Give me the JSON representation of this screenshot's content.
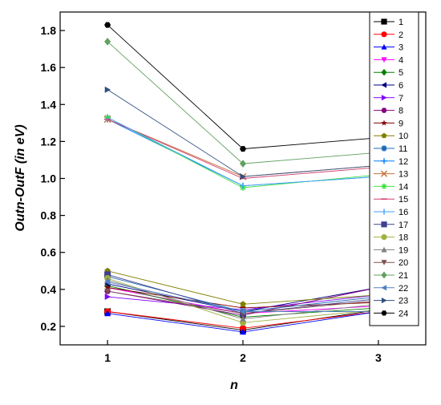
{
  "chart_data": {
    "type": "line",
    "xlabel": "n",
    "ylabel": "Outn-OutF (in eV)",
    "x": [
      1,
      2,
      3
    ],
    "x_ticks": [
      "1",
      "2",
      "3"
    ],
    "y_ticks": [
      "0.2",
      "0.4",
      "0.6",
      "0.8",
      "1.0",
      "1.2",
      "1.4",
      "1.6",
      "1.8"
    ],
    "xlim": [
      0.65,
      3.35
    ],
    "ylim": [
      0.1,
      1.9
    ],
    "grid": false,
    "legend_placement": "right",
    "series": [
      {
        "name": "1",
        "values": [
          0.28,
          0.18,
          0.29
        ],
        "color": "#000000",
        "marker": "square"
      },
      {
        "name": "2",
        "values": [
          0.28,
          0.19,
          0.28
        ],
        "color": "#ff0000",
        "marker": "circle"
      },
      {
        "name": "3",
        "values": [
          0.27,
          0.17,
          0.28
        ],
        "color": "#0000ff",
        "marker": "triangle-up"
      },
      {
        "name": "4",
        "values": [
          0.41,
          0.27,
          0.31
        ],
        "color": "#ff00ff",
        "marker": "triangle-down"
      },
      {
        "name": "5",
        "values": [
          0.42,
          0.25,
          0.3
        ],
        "color": "#008000",
        "marker": "diamond"
      },
      {
        "name": "6",
        "values": [
          0.43,
          0.28,
          0.41
        ],
        "color": "#000080",
        "marker": "triangle-left"
      },
      {
        "name": "7",
        "values": [
          0.36,
          0.29,
          0.37
        ],
        "color": "#8000ff",
        "marker": "triangle-right"
      },
      {
        "name": "8",
        "values": [
          0.39,
          0.26,
          0.41
        ],
        "color": "#800080",
        "marker": "hexagon"
      },
      {
        "name": "9",
        "values": [
          0.41,
          0.3,
          0.33
        ],
        "color": "#800000",
        "marker": "star"
      },
      {
        "name": "10",
        "values": [
          0.5,
          0.32,
          0.37
        ],
        "color": "#808000",
        "marker": "pentagon"
      },
      {
        "name": "11",
        "values": [
          0.47,
          0.28,
          0.36
        ],
        "color": "#1e6bb5",
        "marker": "ball"
      },
      {
        "name": "12",
        "values": [
          1.32,
          0.96,
          1.01
        ],
        "color": "#0080ff",
        "marker": "plus"
      },
      {
        "name": "13",
        "values": [
          1.32,
          1.01,
          1.07
        ],
        "color": "#c87137",
        "marker": "x"
      },
      {
        "name": "14",
        "values": [
          1.33,
          0.95,
          1.02
        ],
        "color": "#40e040",
        "marker": "asterisk"
      },
      {
        "name": "15",
        "values": [
          1.32,
          1.0,
          1.06
        ],
        "color": "#d04070",
        "marker": "dash"
      },
      {
        "name": "16",
        "values": [
          1.33,
          0.96,
          1.01
        ],
        "color": "#40a0ff",
        "marker": "tick"
      },
      {
        "name": "17",
        "values": [
          0.48,
          0.27,
          0.35
        ],
        "color": "#404090",
        "marker": "square"
      },
      {
        "name": "18",
        "values": [
          0.46,
          0.22,
          0.29
        ],
        "color": "#a0b040",
        "marker": "circle"
      },
      {
        "name": "19",
        "values": [
          0.45,
          0.24,
          0.32
        ],
        "color": "#808080",
        "marker": "triangle-up"
      },
      {
        "name": "20",
        "values": [
          0.39,
          0.27,
          0.34
        ],
        "color": "#805050",
        "marker": "triangle-down"
      },
      {
        "name": "21",
        "values": [
          1.74,
          1.08,
          1.14
        ],
        "color": "#60a060",
        "marker": "diamond"
      },
      {
        "name": "22",
        "values": [
          0.44,
          0.28,
          0.28
        ],
        "color": "#5080c0",
        "marker": "triangle-left"
      },
      {
        "name": "23",
        "values": [
          1.48,
          1.01,
          1.07
        ],
        "color": "#305080",
        "marker": "triangle-right"
      },
      {
        "name": "24",
        "values": [
          1.83,
          1.16,
          1.22
        ],
        "color": "#000000",
        "marker": "hexagon"
      }
    ]
  }
}
